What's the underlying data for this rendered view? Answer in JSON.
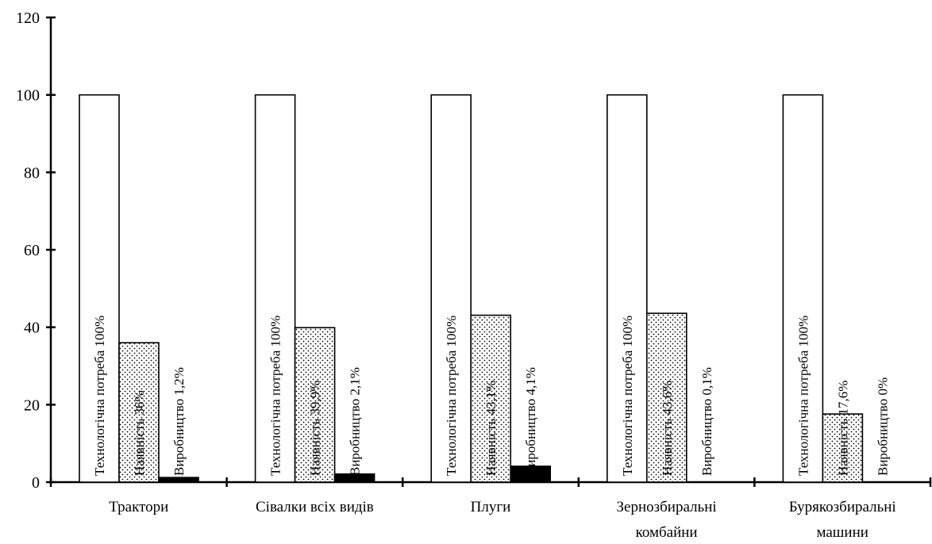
{
  "chart_data": {
    "type": "bar",
    "title": "",
    "xlabel": "",
    "ylabel": "",
    "ylim": [
      0,
      120
    ],
    "yticks": [
      0,
      20,
      40,
      60,
      80,
      100,
      120
    ],
    "grid": false,
    "legend": "none",
    "categories": [
      [
        "Трактори"
      ],
      [
        "Сівалки всіх видів"
      ],
      [
        "Плуги"
      ],
      [
        "Зернозбиральні",
        "комбайни"
      ],
      [
        "Бурякозбиральні",
        "машини"
      ]
    ],
    "series": [
      {
        "fill": "white",
        "values": [
          100,
          100,
          100,
          100,
          100
        ],
        "labels": [
          "Технологічна потреба 100%",
          "Технологічна потреба 100%",
          "Технологічна потреба 100%",
          "Технологічна потреба 100%",
          "Технологічна потреба 100%"
        ]
      },
      {
        "fill": "dotted",
        "values": [
          36,
          39.9,
          43.1,
          43.6,
          17.6
        ],
        "labels": [
          "Наявність 36%",
          "Наявність 39,9%",
          "Наявність 43,1%",
          "Наявність 43,6%",
          "Наявність 17,6%"
        ]
      },
      {
        "fill": "black",
        "values": [
          1.2,
          2.1,
          4.1,
          0.1,
          0
        ],
        "labels": [
          "Виробництво 1,2%",
          "Виробництво 2,1%",
          "Виробництво 4,1%",
          "Виробництво 0,1%",
          "Виробництво 0%"
        ]
      }
    ]
  }
}
